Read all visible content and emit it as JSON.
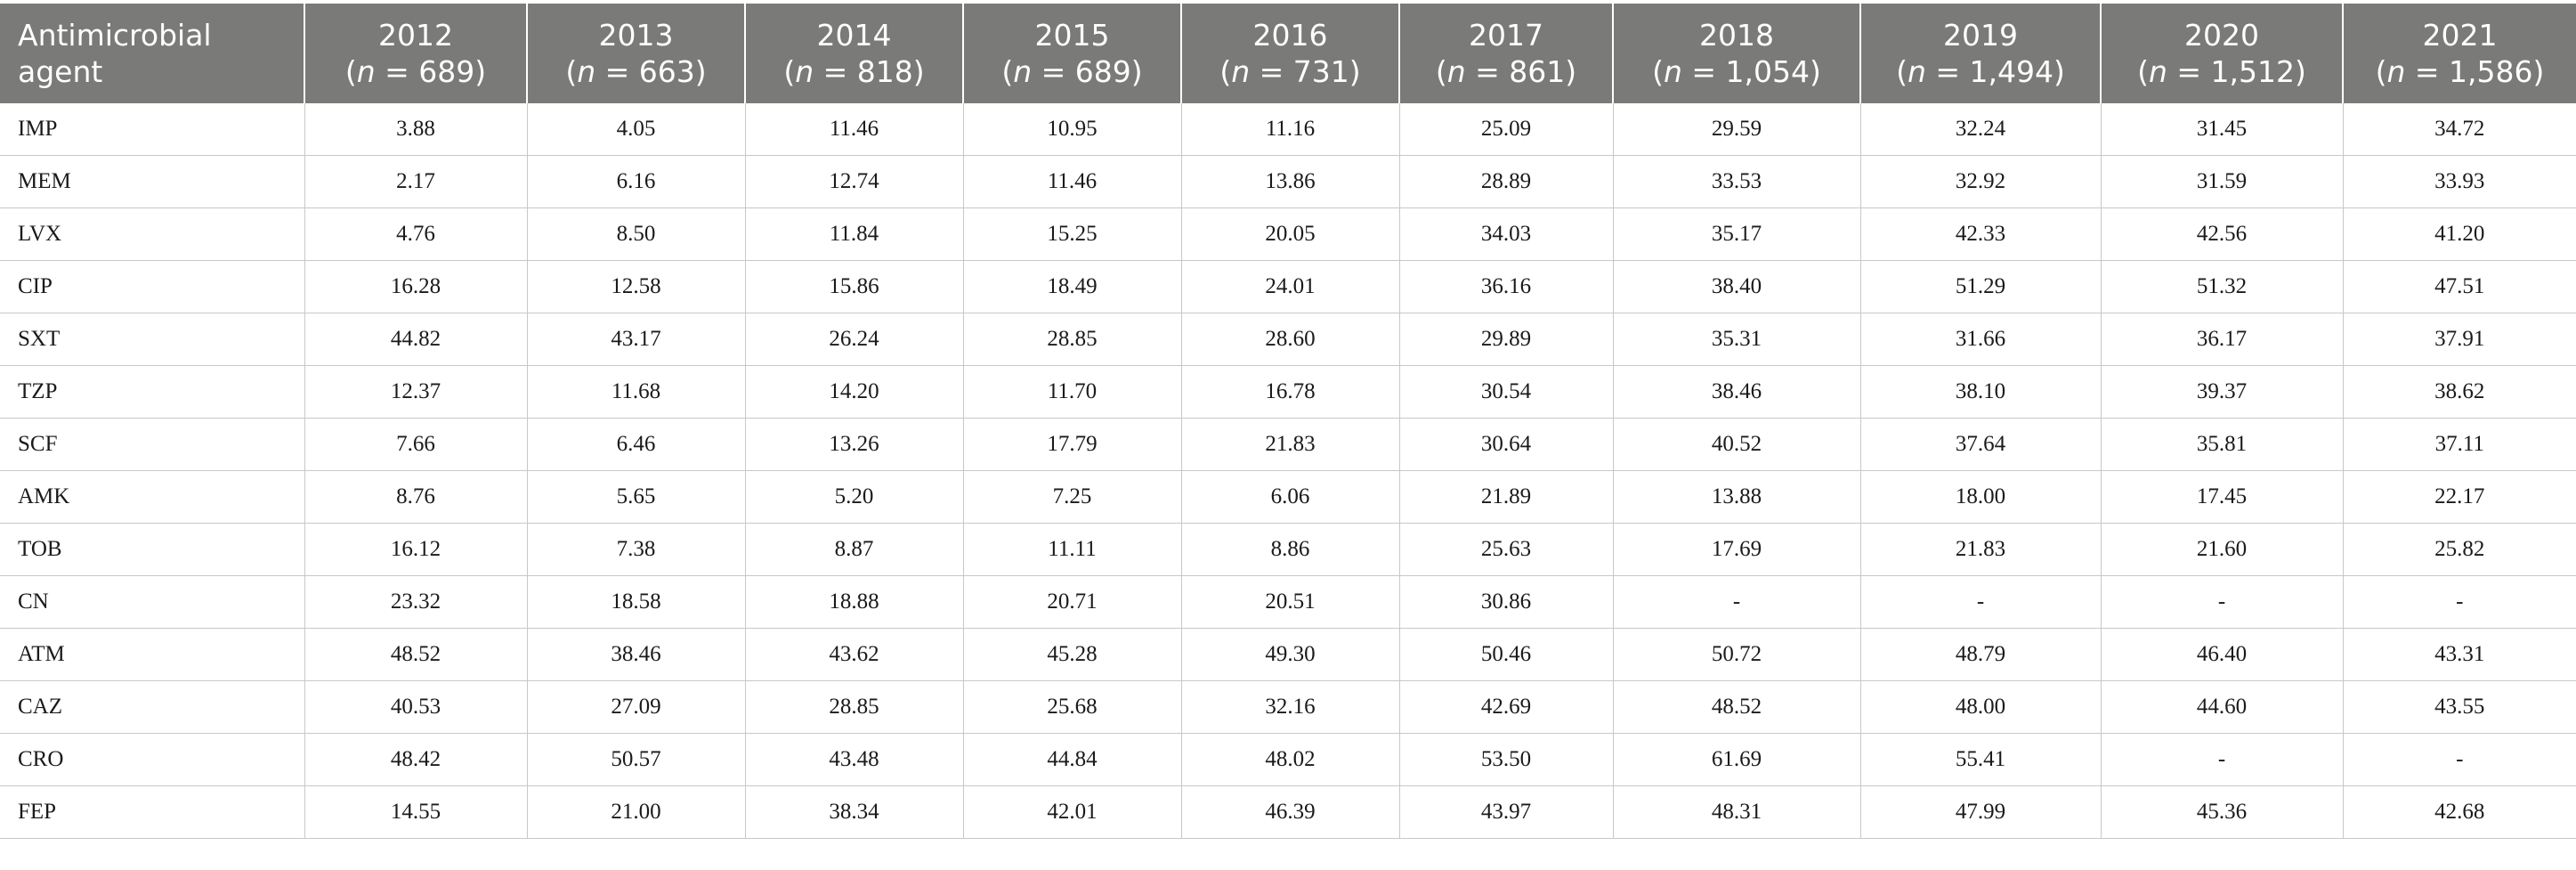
{
  "table": {
    "first_header_line1": "Antimicrobial",
    "first_header_line2": "agent",
    "years": [
      {
        "year": "2012",
        "n_label": "n",
        "n_value": " = 689)"
      },
      {
        "year": "2013",
        "n_label": "n",
        "n_value": " = 663)"
      },
      {
        "year": "2014",
        "n_label": "n",
        "n_value": " = 818)"
      },
      {
        "year": "2015",
        "n_label": "n",
        "n_value": " = 689)"
      },
      {
        "year": "2016",
        "n_label": "n",
        "n_value": " = 731)"
      },
      {
        "year": "2017",
        "n_label": "n",
        "n_value": " = 861)"
      },
      {
        "year": "2018",
        "n_label": "n",
        "n_value": " = 1,054)"
      },
      {
        "year": "2019",
        "n_label": "n",
        "n_value": " = 1,494)"
      },
      {
        "year": "2020",
        "n_label": "n",
        "n_value": " = 1,512)"
      },
      {
        "year": "2021",
        "n_label": "n",
        "n_value": " = 1,586)"
      }
    ],
    "rows": [
      {
        "agent": "IMP",
        "values": [
          "3.88",
          "4.05",
          "11.46",
          "10.95",
          "11.16",
          "25.09",
          "29.59",
          "32.24",
          "31.45",
          "34.72"
        ]
      },
      {
        "agent": "MEM",
        "values": [
          "2.17",
          "6.16",
          "12.74",
          "11.46",
          "13.86",
          "28.89",
          "33.53",
          "32.92",
          "31.59",
          "33.93"
        ]
      },
      {
        "agent": "LVX",
        "values": [
          "4.76",
          "8.50",
          "11.84",
          "15.25",
          "20.05",
          "34.03",
          "35.17",
          "42.33",
          "42.56",
          "41.20"
        ]
      },
      {
        "agent": "CIP",
        "values": [
          "16.28",
          "12.58",
          "15.86",
          "18.49",
          "24.01",
          "36.16",
          "38.40",
          "51.29",
          "51.32",
          "47.51"
        ]
      },
      {
        "agent": "SXT",
        "values": [
          "44.82",
          "43.17",
          "26.24",
          "28.85",
          "28.60",
          "29.89",
          "35.31",
          "31.66",
          "36.17",
          "37.91"
        ]
      },
      {
        "agent": "TZP",
        "values": [
          "12.37",
          "11.68",
          "14.20",
          "11.70",
          "16.78",
          "30.54",
          "38.46",
          "38.10",
          "39.37",
          "38.62"
        ]
      },
      {
        "agent": "SCF",
        "values": [
          "7.66",
          "6.46",
          "13.26",
          "17.79",
          "21.83",
          "30.64",
          "40.52",
          "37.64",
          "35.81",
          "37.11"
        ]
      },
      {
        "agent": "AMK",
        "values": [
          "8.76",
          "5.65",
          "5.20",
          "7.25",
          "6.06",
          "21.89",
          "13.88",
          "18.00",
          "17.45",
          "22.17"
        ]
      },
      {
        "agent": "TOB",
        "values": [
          "16.12",
          "7.38",
          "8.87",
          "11.11",
          "8.86",
          "25.63",
          "17.69",
          "21.83",
          "21.60",
          "25.82"
        ]
      },
      {
        "agent": "CN",
        "values": [
          "23.32",
          "18.58",
          "18.88",
          "20.71",
          "20.51",
          "30.86",
          "-",
          "-",
          "-",
          "-"
        ]
      },
      {
        "agent": "ATM",
        "values": [
          "48.52",
          "38.46",
          "43.62",
          "45.28",
          "49.30",
          "50.46",
          "50.72",
          "48.79",
          "46.40",
          "43.31"
        ]
      },
      {
        "agent": "CAZ",
        "values": [
          "40.53",
          "27.09",
          "28.85",
          "25.68",
          "32.16",
          "42.69",
          "48.52",
          "48.00",
          "44.60",
          "43.55"
        ]
      },
      {
        "agent": "CRO",
        "values": [
          "48.42",
          "50.57",
          "43.48",
          "44.84",
          "48.02",
          "53.50",
          "61.69",
          "55.41",
          "-",
          "-"
        ]
      },
      {
        "agent": "FEP",
        "values": [
          "14.55",
          "21.00",
          "38.34",
          "42.01",
          "46.39",
          "43.97",
          "48.31",
          "47.99",
          "45.36",
          "42.68"
        ]
      }
    ]
  }
}
